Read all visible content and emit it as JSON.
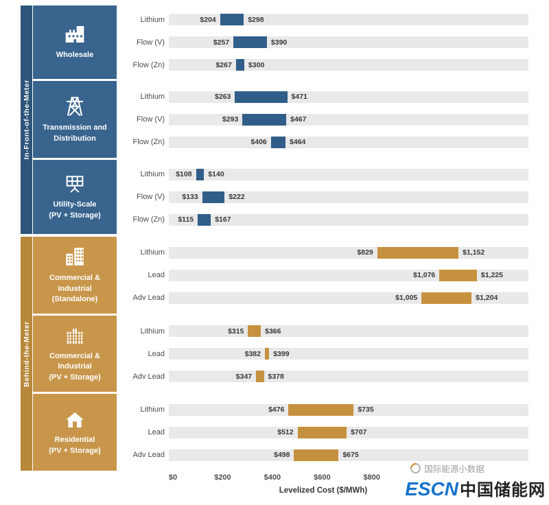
{
  "axis": {
    "label": "Levelized Cost ($/MWh)",
    "ticks": [
      {
        "value": 0,
        "label": "$0"
      },
      {
        "value": 200,
        "label": "$200"
      },
      {
        "value": 400,
        "label": "$400"
      },
      {
        "value": 600,
        "label": "$600"
      },
      {
        "value": 800,
        "label": "$800"
      }
    ]
  },
  "watermark": {
    "source_text": "国际能源小数据",
    "brand_primary": "ESCN",
    "brand_secondary": "中国储能网",
    "brand_color": "#1673cc"
  },
  "chart_data": {
    "type": "bar",
    "subtype": "horizontal-range",
    "unit": "$/MWh",
    "xlabel": "Levelized Cost ($/MWh)",
    "xlim": [
      0,
      1430
    ],
    "track_color": "#e9e9e9",
    "meters": [
      {
        "label": "In-Front-of-the-Meter",
        "strip_color": "#2d5578",
        "tile_color": "#38648e",
        "bar_color": "#315e89",
        "groups": [
          {
            "label": "Wholesale",
            "icon": "factory-icon",
            "rows": [
              {
                "label": "Lithium",
                "low": 204,
                "high": 298,
                "low_label": "$204",
                "high_label": "$298"
              },
              {
                "label": "Flow (V)",
                "low": 257,
                "high": 390,
                "low_label": "$257",
                "high_label": "$390"
              },
              {
                "label": "Flow (Zn)",
                "low": 267,
                "high": 300,
                "low_label": "$267",
                "high_label": "$300"
              }
            ]
          },
          {
            "label": "Transmission and\nDistribution",
            "icon": "transmission-tower-icon",
            "rows": [
              {
                "label": "Lithium",
                "low": 263,
                "high": 471,
                "low_label": "$263",
                "high_label": "$471"
              },
              {
                "label": "Flow (V)",
                "low": 293,
                "high": 467,
                "low_label": "$293",
                "high_label": "$467"
              },
              {
                "label": "Flow (Zn)",
                "low": 406,
                "high": 464,
                "low_label": "$406",
                "high_label": "$464"
              }
            ]
          },
          {
            "label": "Utility-Scale\n(PV + Storage)",
            "icon": "solar-panel-icon",
            "rows": [
              {
                "label": "Lithium",
                "low": 108,
                "high": 140,
                "low_label": "$108",
                "high_label": "$140"
              },
              {
                "label": "Flow (V)",
                "low": 133,
                "high": 222,
                "low_label": "$133",
                "high_label": "$222"
              },
              {
                "label": "Flow (Zn)",
                "low": 115,
                "high": 167,
                "low_label": "$115",
                "high_label": "$167"
              }
            ]
          }
        ]
      },
      {
        "label": "Behind-the-Meter",
        "strip_color": "#b8893a",
        "tile_color": "#c8964a",
        "bar_color": "#c6913f",
        "groups": [
          {
            "label": "Commercial &\nIndustrial\n(Standalone)",
            "icon": "city-buildings-icon",
            "rows": [
              {
                "label": "Lithium",
                "low": 829,
                "high": 1152,
                "low_label": "$829",
                "high_label": "$1,152"
              },
              {
                "label": "Lead",
                "low": 1076,
                "high": 1225,
                "low_label": "$1,076",
                "high_label": "$1,225"
              },
              {
                "label": "Adv Lead",
                "low": 1005,
                "high": 1204,
                "low_label": "$1,005",
                "high_label": "$1,204"
              }
            ]
          },
          {
            "label": "Commercial &\nIndustrial\n(PV + Storage)",
            "icon": "office-buildings-icon",
            "rows": [
              {
                "label": "Lithium",
                "low": 315,
                "high": 366,
                "low_label": "$315",
                "high_label": "$366"
              },
              {
                "label": "Lead",
                "low": 382,
                "high": 399,
                "low_label": "$382",
                "high_label": "$399"
              },
              {
                "label": "Adv Lead",
                "low": 347,
                "high": 378,
                "low_label": "$347",
                "high_label": "$378"
              }
            ]
          },
          {
            "label": "Residential\n(PV + Storage)",
            "icon": "house-icon",
            "rows": [
              {
                "label": "Lithium",
                "low": 476,
                "high": 735,
                "low_label": "$476",
                "high_label": "$735"
              },
              {
                "label": "Lead",
                "low": 512,
                "high": 707,
                "low_label": "$512",
                "high_label": "$707"
              },
              {
                "label": "Adv Lead",
                "low": 498,
                "high": 675,
                "low_label": "$498",
                "high_label": "$675"
              }
            ]
          }
        ]
      }
    ]
  }
}
